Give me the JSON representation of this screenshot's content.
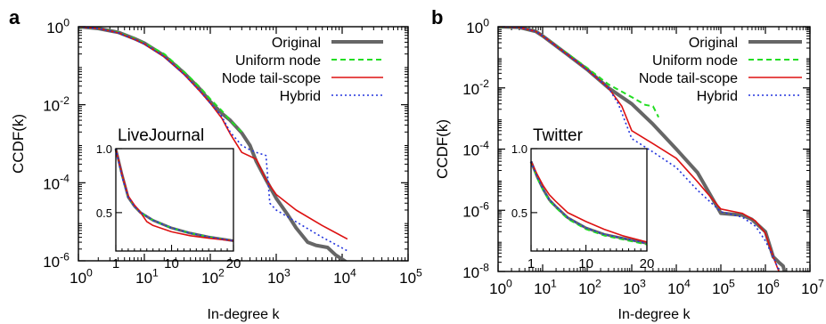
{
  "chart_data": [
    {
      "type": "line",
      "panel_label": "a",
      "xlabel": "In-degree k",
      "ylabel": "CCDF(k)",
      "xscale": "log",
      "yscale": "log",
      "xlim": [
        1,
        100000
      ],
      "ylim": [
        1e-06,
        1
      ],
      "x_ticks": [
        {
          "v": 1,
          "m": "10",
          "e": "0"
        },
        {
          "v": 10,
          "m": "10",
          "e": "1"
        },
        {
          "v": 100,
          "m": "10",
          "e": "2"
        },
        {
          "v": 1000,
          "m": "10",
          "e": "3"
        },
        {
          "v": 10000,
          "m": "10",
          "e": "4"
        },
        {
          "v": 100000,
          "m": "10",
          "e": "5"
        }
      ],
      "y_ticks": [
        {
          "v": 1,
          "m": "10",
          "e": "0"
        },
        {
          "v": 0.01,
          "m": "10",
          "e": "-2"
        },
        {
          "v": 0.0001,
          "m": "10",
          "e": "-4"
        },
        {
          "v": 1e-06,
          "m": "10",
          "e": "-6"
        }
      ],
      "legend_position": "top-right",
      "series": [
        {
          "name": "Original",
          "color": "#666666",
          "dash": "solid",
          "x": [
            1,
            2,
            4,
            7,
            10,
            20,
            40,
            70,
            100,
            150,
            200,
            300,
            400,
            500,
            700,
            1000,
            1500,
            2000,
            3000,
            4000,
            6000,
            8000,
            10000,
            14000
          ],
          "y": [
            1,
            0.9,
            0.72,
            0.5,
            0.38,
            0.18,
            0.065,
            0.025,
            0.012,
            0.006,
            0.004,
            0.0019,
            0.0009,
            0.00035,
            0.00012,
            4e-05,
            1.5e-05,
            7e-06,
            3e-06,
            2.5e-06,
            2.2e-06,
            1.4e-06,
            1.1e-06,
            7.5e-07
          ]
        },
        {
          "name": "Uniform node",
          "color": "#22dd22",
          "dash": "dashed",
          "x": [
            1,
            2,
            4,
            7,
            10,
            20,
            40,
            70,
            100,
            150,
            200,
            300
          ],
          "y": [
            1,
            0.9,
            0.72,
            0.5,
            0.38,
            0.2,
            0.07,
            0.028,
            0.014,
            0.007,
            0.004,
            0.002
          ]
        },
        {
          "name": "Node tail-scope",
          "color": "#dd1111",
          "dash": "solid",
          "x": [
            1,
            2,
            4,
            7,
            10,
            20,
            40,
            70,
            100,
            150,
            200,
            300,
            500,
            700,
            1000,
            2000,
            5000,
            12000
          ],
          "y": [
            1,
            0.9,
            0.7,
            0.48,
            0.36,
            0.17,
            0.06,
            0.022,
            0.011,
            0.0045,
            0.0018,
            0.0006,
            0.0004,
            0.00012,
            5e-05,
            2e-05,
            8e-06,
            3.6e-06
          ]
        },
        {
          "name": "Hybrid",
          "color": "#2233dd",
          "dash": "dotted",
          "x": [
            1,
            2,
            4,
            7,
            10,
            20,
            40,
            70,
            100,
            150,
            200,
            300,
            400,
            500,
            700,
            800,
            1000,
            2000,
            5000,
            12000
          ],
          "y": [
            1,
            0.9,
            0.7,
            0.48,
            0.36,
            0.17,
            0.06,
            0.022,
            0.011,
            0.005,
            0.002,
            0.0009,
            0.0007,
            0.0006,
            0.0005,
            3e-05,
            2e-05,
            1e-05,
            4e-06,
            1.8e-06
          ]
        }
      ],
      "inset": {
        "title": "LiveJournal",
        "xscale": "linear",
        "yscale": "linear",
        "xlim": [
          1,
          20
        ],
        "ylim": [
          0.2,
          1.0
        ],
        "x_ticks": [
          {
            "v": 1,
            "label": "1"
          },
          {
            "v": 10,
            "label": "10"
          },
          {
            "v": 20,
            "label": "20"
          }
        ],
        "y_ticks": [
          {
            "v": 0.5,
            "label": "0.5"
          },
          {
            "v": 1.0,
            "label": "1.0"
          }
        ],
        "series": [
          {
            "name": "Original",
            "color": "#666666",
            "dash": "solid",
            "x": [
              1,
              2,
              3,
              4,
              5,
              7,
              10,
              13,
              16,
              20
            ],
            "y": [
              1.0,
              0.8,
              0.62,
              0.55,
              0.5,
              0.44,
              0.38,
              0.34,
              0.31,
              0.28
            ]
          },
          {
            "name": "Uniform node",
            "color": "#22dd22",
            "dash": "dashed",
            "x": [
              1,
              2,
              3,
              4,
              5,
              7,
              10,
              13,
              16,
              20
            ],
            "y": [
              1.0,
              0.79,
              0.62,
              0.55,
              0.5,
              0.44,
              0.38,
              0.34,
              0.31,
              0.28
            ]
          },
          {
            "name": "Node tail-scope",
            "color": "#dd1111",
            "dash": "solid",
            "x": [
              1,
              2,
              3,
              4,
              5,
              6,
              7,
              10,
              13,
              16,
              20
            ],
            "y": [
              1.0,
              0.8,
              0.63,
              0.56,
              0.5,
              0.43,
              0.4,
              0.35,
              0.32,
              0.3,
              0.28
            ]
          },
          {
            "name": "Hybrid",
            "color": "#2233dd",
            "dash": "dotted",
            "x": [
              1,
              2,
              3,
              4,
              5,
              7,
              10,
              13,
              16,
              20
            ],
            "y": [
              1.0,
              0.78,
              0.62,
              0.55,
              0.5,
              0.44,
              0.38,
              0.34,
              0.31,
              0.28
            ]
          }
        ]
      }
    },
    {
      "type": "line",
      "panel_label": "b",
      "xlabel": "In-degree k",
      "ylabel": "CCDF(k)",
      "xscale": "log",
      "yscale": "log",
      "xlim": [
        1,
        10000000
      ],
      "ylim": [
        1e-08,
        1
      ],
      "x_ticks": [
        {
          "v": 1,
          "m": "10",
          "e": "0"
        },
        {
          "v": 10,
          "m": "10",
          "e": "1"
        },
        {
          "v": 100,
          "m": "10",
          "e": "2"
        },
        {
          "v": 1000,
          "m": "10",
          "e": "3"
        },
        {
          "v": 10000,
          "m": "10",
          "e": "4"
        },
        {
          "v": 100000,
          "m": "10",
          "e": "5"
        },
        {
          "v": 1000000,
          "m": "10",
          "e": "6"
        },
        {
          "v": 10000000,
          "m": "10",
          "e": "7"
        }
      ],
      "y_ticks": [
        {
          "v": 1,
          "m": "10",
          "e": "0"
        },
        {
          "v": 0.01,
          "m": "10",
          "e": "-2"
        },
        {
          "v": 0.0001,
          "m": "10",
          "e": "-4"
        },
        {
          "v": 1e-06,
          "m": "10",
          "e": "-6"
        },
        {
          "v": 1e-08,
          "m": "10",
          "e": "-8"
        }
      ],
      "legend_position": "top-right",
      "series": [
        {
          "name": "Original",
          "color": "#666666",
          "dash": "solid",
          "x": [
            1,
            3,
            7,
            10,
            30,
            100,
            300,
            1000,
            3000,
            10000,
            30000,
            100000,
            300000,
            500000,
            1000000,
            1500000,
            2000000,
            2500000,
            3000000
          ],
          "y": [
            1,
            0.95,
            0.7,
            0.5,
            0.15,
            0.04,
            0.01,
            0.003,
            0.00065,
            0.0001,
            1.7e-05,
            8e-07,
            7e-07,
            5e-07,
            2e-07,
            3e-08,
            2e-08,
            1.5e-08,
            5e-09
          ]
        },
        {
          "name": "Uniform node",
          "color": "#22dd22",
          "dash": "dashed",
          "x": [
            1,
            3,
            7,
            10,
            30,
            100,
            300,
            1000,
            2000,
            3000,
            4000
          ],
          "y": [
            1,
            0.95,
            0.7,
            0.5,
            0.16,
            0.045,
            0.013,
            0.005,
            0.0028,
            0.0025,
            0.0011
          ]
        },
        {
          "name": "Node tail-scope",
          "color": "#dd1111",
          "dash": "solid",
          "x": [
            1,
            3,
            7,
            10,
            30,
            100,
            300,
            600,
            1000,
            3000,
            10000,
            30000,
            100000,
            300000,
            600000,
            1000000,
            1500000,
            2000000,
            2500000
          ],
          "y": [
            1,
            0.95,
            0.7,
            0.5,
            0.15,
            0.04,
            0.01,
            0.0025,
            0.0004,
            0.00015,
            5e-05,
            8.5e-06,
            1.1e-06,
            8e-07,
            4.5e-07,
            1.8e-07,
            3e-08,
            1e-08,
            7e-09
          ]
        },
        {
          "name": "Hybrid",
          "color": "#2233dd",
          "dash": "dotted",
          "x": [
            1,
            3,
            7,
            10,
            30,
            100,
            300,
            500,
            1000,
            3000,
            10000,
            30000,
            100000,
            300000,
            600000,
            1000000,
            1500000,
            2500000
          ],
          "y": [
            1,
            0.95,
            0.7,
            0.5,
            0.15,
            0.04,
            0.01,
            0.003,
            0.00022,
            8e-05,
            2.5e-05,
            4.5e-06,
            9e-07,
            6e-07,
            3e-07,
            1e-07,
            3e-08,
            5e-09
          ]
        }
      ],
      "inset": {
        "title": "Twitter",
        "xscale": "linear",
        "yscale": "linear",
        "xlim": [
          1,
          20
        ],
        "ylim": [
          0.2,
          1.0
        ],
        "x_ticks": [
          {
            "v": 1,
            "label": "1"
          },
          {
            "v": 10,
            "label": "10"
          },
          {
            "v": 20,
            "label": "20"
          }
        ],
        "y_ticks": [
          {
            "v": 0.5,
            "label": "0.5"
          },
          {
            "v": 1.0,
            "label": "1.0"
          }
        ],
        "series": [
          {
            "name": "Original",
            "color": "#666666",
            "dash": "solid",
            "x": [
              1,
              2,
              3,
              4,
              5,
              7,
              10,
              13,
              16,
              20
            ],
            "y": [
              0.9,
              0.78,
              0.68,
              0.6,
              0.55,
              0.46,
              0.38,
              0.33,
              0.3,
              0.26
            ]
          },
          {
            "name": "Uniform node",
            "color": "#22dd22",
            "dash": "dashed",
            "x": [
              1,
              2,
              3,
              4,
              5,
              7,
              10,
              13,
              16,
              20
            ],
            "y": [
              0.9,
              0.77,
              0.67,
              0.59,
              0.54,
              0.45,
              0.37,
              0.32,
              0.29,
              0.25
            ]
          },
          {
            "name": "Node tail-scope",
            "color": "#dd1111",
            "dash": "solid",
            "x": [
              1,
              2,
              3,
              4,
              5,
              7,
              10,
              13,
              16,
              20
            ],
            "y": [
              0.9,
              0.8,
              0.71,
              0.64,
              0.59,
              0.5,
              0.43,
              0.37,
              0.32,
              0.27
            ]
          },
          {
            "name": "Hybrid",
            "color": "#2233dd",
            "dash": "dotted",
            "x": [
              1,
              2,
              3,
              4,
              5,
              7,
              10,
              13,
              16,
              20
            ],
            "y": [
              0.9,
              0.78,
              0.68,
              0.6,
              0.55,
              0.46,
              0.38,
              0.33,
              0.3,
              0.26
            ]
          }
        ]
      }
    }
  ]
}
